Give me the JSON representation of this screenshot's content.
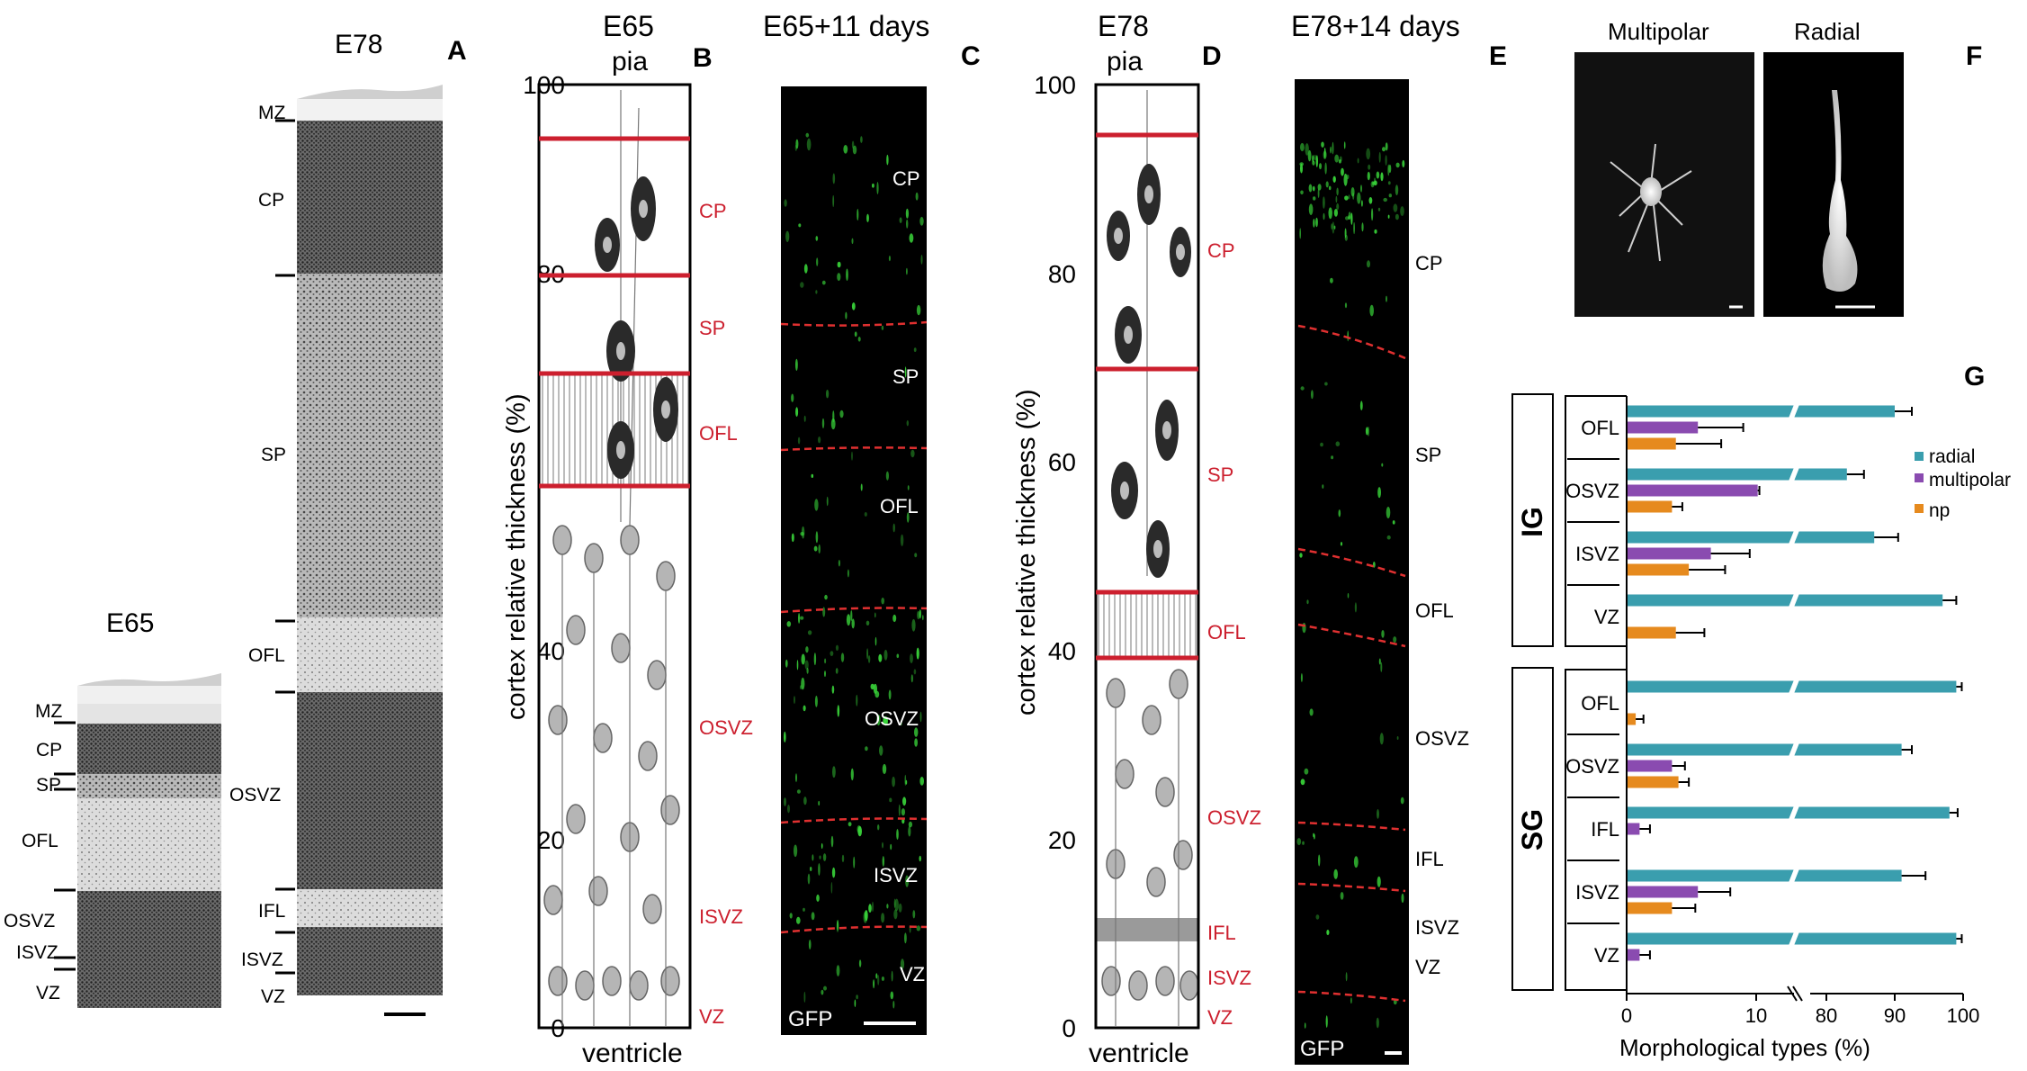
{
  "panelA": {
    "letter": "A",
    "stage_small": "E65",
    "stage_large": "E78",
    "layers_e65": [
      "MZ",
      "CP",
      "SP",
      "OFL",
      "OSVZ",
      "ISVZ",
      "VZ"
    ],
    "layers_e78": [
      "MZ",
      "CP",
      "SP",
      "OFL",
      "OSVZ",
      "IFL",
      "ISVZ",
      "VZ"
    ]
  },
  "panelB": {
    "letter": "B",
    "title": "E65",
    "top_label": "pia",
    "bottom_label": "ventricle",
    "y_axis_label": "cortex relative thickness (%)",
    "y_ticks": [
      "0",
      "20",
      "40",
      "60",
      "80",
      "100"
    ],
    "layers": [
      "CP",
      "SP",
      "OFL",
      "OSVZ",
      "ISVZ",
      "VZ"
    ]
  },
  "panelC": {
    "letter": "C",
    "title": "E65+11 days",
    "stain": "GFP",
    "layers": [
      "CP",
      "SP",
      "OFL",
      "OSVZ",
      "ISVZ",
      "VZ"
    ]
  },
  "panelD": {
    "letter": "D",
    "title": "E78",
    "top_label": "pia",
    "bottom_label": "ventricle",
    "y_axis_label": "cortex relative thickness (%)",
    "y_ticks": [
      "0",
      "20",
      "40",
      "60",
      "80",
      "100"
    ],
    "layers": [
      "CP",
      "SP",
      "OFL",
      "OSVZ",
      "IFL",
      "ISVZ",
      "VZ"
    ]
  },
  "panelE": {
    "letter": "E",
    "title": "E78+14 days",
    "stain": "GFP",
    "layers": [
      "CP",
      "SP",
      "OFL",
      "OSVZ",
      "IFL",
      "ISVZ",
      "VZ"
    ]
  },
  "panelF": {
    "letter": "F",
    "left_label": "Multipolar",
    "right_label": "Radial"
  },
  "panelG": {
    "letter": "G",
    "x_axis_label": "Morphological types (%)",
    "x_ticks": [
      "0",
      "10",
      "80",
      "90",
      "100"
    ],
    "legend": [
      "radial",
      "multipolar",
      "np"
    ],
    "group_labels": [
      "IG",
      "SG"
    ],
    "ig_rows": [
      "OFL",
      "OSVZ",
      "ISVZ",
      "VZ"
    ],
    "sg_rows": [
      "OFL",
      "OSVZ",
      "IFL",
      "ISVZ",
      "VZ"
    ]
  },
  "colors": {
    "radial": "#3a9eae",
    "multipolar": "#8a4bb0",
    "np": "#e68a1e",
    "layer_red": "#cc1f2e",
    "gfp_green": "#39d63a"
  },
  "chart_data": {
    "type": "bar",
    "orientation": "horizontal",
    "xlabel": "Morphological types (%)",
    "axis_break": [
      10,
      80
    ],
    "xlim": [
      0,
      100
    ],
    "categories": [
      "IG OFL",
      "IG OSVZ",
      "IG ISVZ",
      "IG VZ",
      "SG OFL",
      "SG OSVZ",
      "SG IFL",
      "SG ISVZ",
      "SG VZ"
    ],
    "series": [
      {
        "name": "radial",
        "values": [
          90,
          83,
          87,
          97,
          99,
          91,
          98,
          91,
          99
        ],
        "errors": [
          2.5,
          2.5,
          3.5,
          2,
          0.8,
          1.5,
          1.2,
          3.5,
          0.8
        ]
      },
      {
        "name": "multipolar",
        "values": [
          5.5,
          11.5,
          6.5,
          0,
          0,
          3.5,
          1,
          5.5,
          1
        ],
        "errors": [
          3.5,
          1.7,
          3,
          0,
          0,
          1,
          0.8,
          2.5,
          0.8
        ]
      },
      {
        "name": "np",
        "values": [
          3.8,
          3.5,
          4.8,
          3.8,
          0.7,
          4,
          0,
          3.5,
          0
        ],
        "errors": [
          3.5,
          0.8,
          2.8,
          2.2,
          0.6,
          0.8,
          0,
          1.8,
          0
        ]
      }
    ],
    "legend_position": "top-right",
    "grid": false
  }
}
